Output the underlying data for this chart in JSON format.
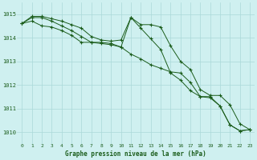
{
  "title": "Graphe pression niveau de la mer (hPa)",
  "background_color": "#cff0f0",
  "grid_color": "#aad8d8",
  "line_color": "#1a5c1a",
  "xlim": [
    -0.5,
    23.5
  ],
  "ylim": [
    1009.5,
    1015.5
  ],
  "xticks": [
    0,
    1,
    2,
    3,
    4,
    5,
    6,
    7,
    8,
    9,
    10,
    11,
    12,
    13,
    14,
    15,
    16,
    17,
    18,
    19,
    20,
    21,
    22,
    23
  ],
  "yticks": [
    1010,
    1011,
    1012,
    1013,
    1014,
    1015
  ],
  "series1": [
    1014.6,
    1014.9,
    1014.9,
    1014.8,
    1014.7,
    1014.55,
    1014.4,
    1014.05,
    1013.9,
    1013.85,
    1013.9,
    1014.85,
    1014.55,
    1014.55,
    1014.45,
    1013.65,
    1013.0,
    1012.65,
    1011.8,
    1011.55,
    1011.55,
    1011.15,
    1010.35,
    1010.1
  ],
  "series2": [
    1014.6,
    1014.85,
    1014.85,
    1014.7,
    1014.5,
    1014.3,
    1014.05,
    1013.8,
    1013.75,
    1013.7,
    1013.6,
    1014.85,
    1014.4,
    1013.95,
    1013.5,
    1012.5,
    1012.2,
    1011.75,
    1011.5,
    1011.45,
    1011.1,
    1010.3,
    1010.05,
    1010.1
  ],
  "series3": [
    1014.6,
    1014.7,
    1014.5,
    1014.45,
    1014.3,
    1014.1,
    1013.8,
    1013.8,
    1013.8,
    1013.75,
    1013.6,
    1013.3,
    1013.1,
    1012.85,
    1012.7,
    1012.55,
    1012.5,
    1012.1,
    1011.5,
    1011.5,
    1011.1,
    1010.3,
    1010.05,
    1010.1
  ]
}
